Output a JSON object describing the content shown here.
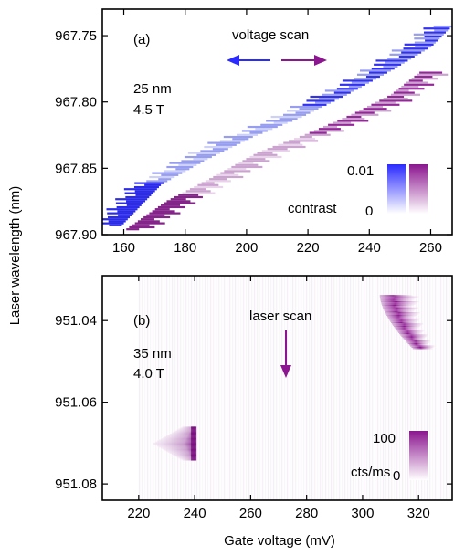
{
  "colors": {
    "blue": "#2b2bff",
    "purple": "#8b168f",
    "frame": "#000000"
  },
  "shared": {
    "ylabel": "Laser wavelength (nm)",
    "xlabel": "Gate voltage (mV)"
  },
  "chart_data": [
    {
      "type": "heatmap",
      "panel": "(a)",
      "xlim": [
        153,
        267
      ],
      "ylim": [
        967.9,
        967.73
      ],
      "xticks": [
        160,
        180,
        200,
        220,
        240,
        260
      ],
      "yticks": [
        967.75,
        967.8,
        967.85,
        967.9
      ],
      "ytick_labels": [
        "967.75",
        "967.80",
        "967.85",
        "967.90"
      ],
      "annotations": {
        "label": "(a)",
        "scan": "voltage scan",
        "thickness": "25 nm",
        "field": "4.5 T"
      },
      "colorbar": {
        "label": "contrast",
        "max_label": "0.01",
        "min_label": "0",
        "max": 0.01,
        "min": 0,
        "colormaps": [
          "blue",
          "purple"
        ]
      },
      "series": [
        {
          "name": "",
          "color": "blue",
          "x": [
            157,
            170,
            185,
            200,
            215,
            230,
            245,
            258,
            265
          ],
          "y": [
            967.893,
            967.862,
            967.843,
            967.826,
            967.812,
            967.795,
            967.776,
            967.758,
            967.742
          ]
        },
        {
          "name": "",
          "color": "purple",
          "x": [
            162,
            175,
            190,
            205,
            220,
            235,
            248,
            258
          ],
          "y": [
            967.896,
            967.875,
            967.857,
            967.838,
            967.825,
            967.81,
            967.795,
            967.777
          ]
        }
      ]
    },
    {
      "type": "heatmap",
      "panel": "(b)",
      "xlim": [
        207,
        332
      ],
      "ylim": [
        951.084,
        951.029
      ],
      "xticks": [
        220,
        240,
        260,
        280,
        300,
        320
      ],
      "yticks": [
        951.04,
        951.06,
        951.08
      ],
      "ytick_labels": [
        "951.04",
        "951.06",
        "951.08"
      ],
      "annotations": {
        "label": "(b)",
        "scan": "laser scan",
        "thickness": "35 nm",
        "field": "4.0 T"
      },
      "colorbar": {
        "label": "cts/ms",
        "max_label": "100",
        "min_label": "0",
        "max": 100,
        "min": 0,
        "colormaps": [
          "purple"
        ]
      },
      "features": [
        {
          "name": "",
          "x_range": [
            225,
            242
          ],
          "y_center": 951.07,
          "peak_x": 240,
          "peak_y": 951.07,
          "intensity": 90
        },
        {
          "name": "",
          "x_range": [
            300,
            330
          ],
          "y_center": 951.04,
          "peak_x": 312,
          "peak_y": 951.04,
          "intensity": 100
        }
      ]
    }
  ]
}
